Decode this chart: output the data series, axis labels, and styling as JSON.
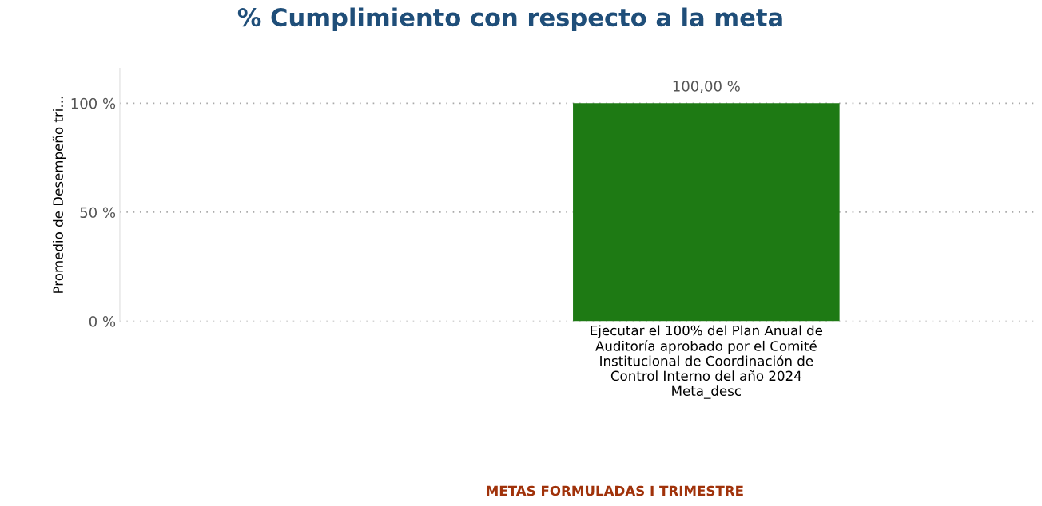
{
  "chart_data": {
    "type": "bar",
    "title": "% Cumplimiento con respecto a la meta",
    "ylabel": "Promedio de Desempeño tri...",
    "xlabel": "Meta_desc",
    "categories": [
      "Ejecutar el 100% del Plan Anual de Auditoría aprobado por el Comité Institucional de Coordinación de Control Interno del año 2024"
    ],
    "values": [
      100
    ],
    "color": "#1e7a14",
    "value_labels": [
      "100,00 %"
    ],
    "ylim": [
      0,
      116
    ],
    "yticks": [
      {
        "value": 0,
        "label": "0 %"
      },
      {
        "value": 50,
        "label": "50 %"
      },
      {
        "value": 100,
        "label": "100 %"
      }
    ],
    "grid": "y",
    "annotations": [
      "METAS FORMULADAS I TRIMESTRE"
    ]
  }
}
